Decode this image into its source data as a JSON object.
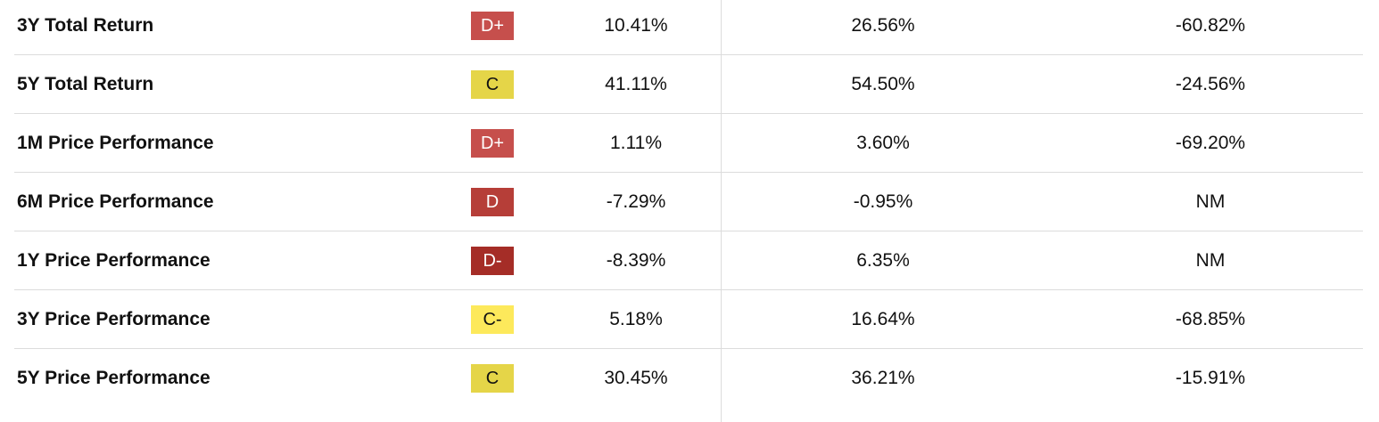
{
  "table": {
    "rows": [
      {
        "label": "3Y Total Return",
        "grade": "D+",
        "grade_color": "#c64f4c",
        "values": [
          "10.41%",
          "26.56%",
          "-60.82%"
        ]
      },
      {
        "label": "5Y Total Return",
        "grade": "C",
        "grade_color": "#e5d548",
        "values": [
          "41.11%",
          "54.50%",
          "-24.56%"
        ]
      },
      {
        "label": "1M Price Performance",
        "grade": "D+",
        "grade_color": "#c64f4c",
        "values": [
          "1.11%",
          "3.60%",
          "-69.20%"
        ]
      },
      {
        "label": "6M Price Performance",
        "grade": "D",
        "grade_color": "#b63e38",
        "values": [
          "-7.29%",
          "-0.95%",
          "NM"
        ]
      },
      {
        "label": "1Y Price Performance",
        "grade": "D-",
        "grade_color": "#a52d27",
        "values": [
          "-8.39%",
          "6.35%",
          "NM"
        ]
      },
      {
        "label": "3Y Price Performance",
        "grade": "C-",
        "grade_color": "#fde95b",
        "values": [
          "5.18%",
          "16.64%",
          "-68.85%"
        ]
      },
      {
        "label": "5Y Price Performance",
        "grade": "C",
        "grade_color": "#e5d548",
        "values": [
          "30.45%",
          "36.21%",
          "-15.91%"
        ]
      }
    ]
  }
}
